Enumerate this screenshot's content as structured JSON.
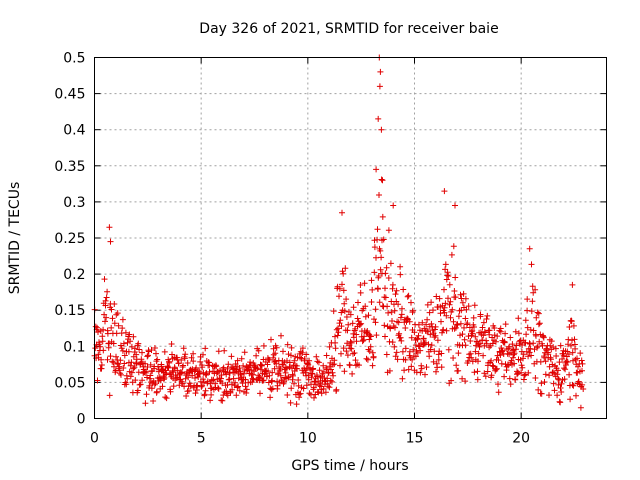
{
  "chart_data": {
    "type": "scatter",
    "title": "Day 326 of 2021, SRMTID for receiver baie",
    "xlabel": "GPS time / hours",
    "ylabel": "SRMTID / TECUs",
    "xlim": [
      0,
      24
    ],
    "ylim": [
      0,
      0.5
    ],
    "x_ticks": [
      0,
      5,
      10,
      15,
      20
    ],
    "x_tick_labels": [
      "0",
      "5",
      "10",
      "15",
      "20"
    ],
    "y_ticks": [
      0,
      0.05,
      0.1,
      0.15,
      0.2,
      0.25,
      0.3,
      0.35,
      0.4,
      0.45,
      0.5
    ],
    "y_tick_labels": [
      "0",
      "0.05",
      "0.1",
      "0.15",
      "0.2",
      "0.25",
      "0.3",
      "0.35",
      "0.4",
      "0.45",
      "0.5"
    ],
    "grid": true,
    "marker": "+",
    "color": "#e00000",
    "x_range_covered": [
      0,
      22.9
    ],
    "envelope": [
      {
        "x": 0.0,
        "typical": 0.08,
        "spread": 0.04
      },
      {
        "x": 0.3,
        "typical": 0.1,
        "spread": 0.05
      },
      {
        "x": 0.6,
        "typical": 0.14,
        "spread": 0.07
      },
      {
        "x": 0.9,
        "typical": 0.12,
        "spread": 0.06
      },
      {
        "x": 1.2,
        "typical": 0.09,
        "spread": 0.04
      },
      {
        "x": 2.0,
        "typical": 0.07,
        "spread": 0.03
      },
      {
        "x": 3.0,
        "typical": 0.065,
        "spread": 0.03
      },
      {
        "x": 4.0,
        "typical": 0.07,
        "spread": 0.03
      },
      {
        "x": 5.0,
        "typical": 0.06,
        "spread": 0.025
      },
      {
        "x": 6.0,
        "typical": 0.055,
        "spread": 0.025
      },
      {
        "x": 7.0,
        "typical": 0.06,
        "spread": 0.025
      },
      {
        "x": 8.0,
        "typical": 0.065,
        "spread": 0.03
      },
      {
        "x": 9.0,
        "typical": 0.07,
        "spread": 0.03
      },
      {
        "x": 10.0,
        "typical": 0.065,
        "spread": 0.03
      },
      {
        "x": 10.8,
        "typical": 0.045,
        "spread": 0.02
      },
      {
        "x": 11.2,
        "typical": 0.09,
        "spread": 0.05
      },
      {
        "x": 11.6,
        "typical": 0.15,
        "spread": 0.07
      },
      {
        "x": 12.0,
        "typical": 0.11,
        "spread": 0.05
      },
      {
        "x": 12.5,
        "typical": 0.12,
        "spread": 0.05
      },
      {
        "x": 13.0,
        "typical": 0.14,
        "spread": 0.06
      },
      {
        "x": 13.4,
        "typical": 0.22,
        "spread": 0.12
      },
      {
        "x": 13.7,
        "typical": 0.15,
        "spread": 0.07
      },
      {
        "x": 14.2,
        "typical": 0.14,
        "spread": 0.07
      },
      {
        "x": 15.0,
        "typical": 0.1,
        "spread": 0.04
      },
      {
        "x": 16.0,
        "typical": 0.11,
        "spread": 0.05
      },
      {
        "x": 16.5,
        "typical": 0.16,
        "spread": 0.08
      },
      {
        "x": 17.0,
        "typical": 0.13,
        "spread": 0.06
      },
      {
        "x": 18.0,
        "typical": 0.11,
        "spread": 0.04
      },
      {
        "x": 19.0,
        "typical": 0.085,
        "spread": 0.035
      },
      {
        "x": 20.0,
        "typical": 0.09,
        "spread": 0.04
      },
      {
        "x": 20.5,
        "typical": 0.14,
        "spread": 0.06
      },
      {
        "x": 21.0,
        "typical": 0.08,
        "spread": 0.04
      },
      {
        "x": 21.8,
        "typical": 0.06,
        "spread": 0.03
      },
      {
        "x": 22.3,
        "typical": 0.1,
        "spread": 0.05
      },
      {
        "x": 22.9,
        "typical": 0.06,
        "spread": 0.03
      }
    ],
    "notable_points": [
      {
        "x": 0.7,
        "y": 0.265
      },
      {
        "x": 0.75,
        "y": 0.245
      },
      {
        "x": 11.6,
        "y": 0.285
      },
      {
        "x": 13.35,
        "y": 0.5
      },
      {
        "x": 13.4,
        "y": 0.48
      },
      {
        "x": 13.38,
        "y": 0.46
      },
      {
        "x": 13.3,
        "y": 0.415
      },
      {
        "x": 13.45,
        "y": 0.4
      },
      {
        "x": 13.5,
        "y": 0.33
      },
      {
        "x": 13.2,
        "y": 0.345
      },
      {
        "x": 14.0,
        "y": 0.295
      },
      {
        "x": 16.4,
        "y": 0.315
      },
      {
        "x": 16.9,
        "y": 0.295
      },
      {
        "x": 20.4,
        "y": 0.235
      },
      {
        "x": 22.4,
        "y": 0.185
      },
      {
        "x": 22.8,
        "y": 0.015
      }
    ]
  }
}
